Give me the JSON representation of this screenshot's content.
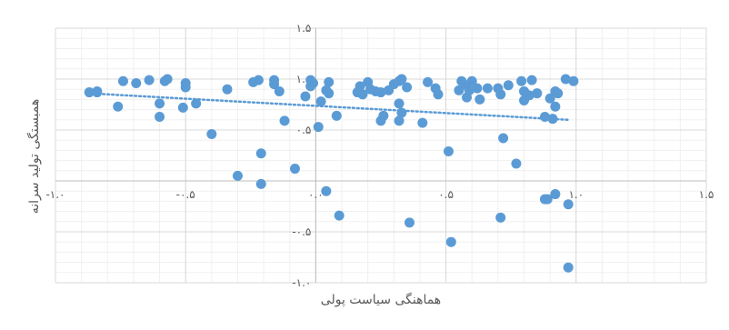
{
  "chart_data": {
    "type": "scatter",
    "xlabel": "هماهنگی سیاست پولی",
    "ylabel": "همبستگی تولید سرانه",
    "xlim": [
      -1.0,
      1.5
    ],
    "ylim": [
      -1.0,
      1.5
    ],
    "x_tick_labels": [
      "-۱.۰",
      "-۰.۵",
      "۰.۰",
      "۰.۵",
      "۱.۰",
      "۱.۵"
    ],
    "y_tick_labels": [
      "-۱.۰",
      "-۰.۵",
      "۰.۰",
      "۰.۵",
      "۱.۰",
      "۱.۵"
    ],
    "x_ticks": [
      -1.0,
      -0.5,
      0.0,
      0.5,
      1.0,
      1.5
    ],
    "y_ticks": [
      -1.0,
      -0.5,
      0.0,
      0.5,
      1.0,
      1.5
    ],
    "grid": true,
    "minor_grid": true,
    "trendline": {
      "type": "linear",
      "x": [
        -0.87,
        0.97
      ],
      "y": [
        0.86,
        0.6
      ]
    },
    "colors": {
      "marker": "#5b9bd5",
      "trend": "#5b9bd5",
      "major_grid": "#d9d9d9",
      "minor_grid": "#f0f0f0",
      "axis": "#bfbfbf"
    },
    "series": [
      {
        "points": [
          [
            -0.87,
            0.87
          ],
          [
            -0.84,
            0.87
          ],
          [
            -0.84,
            0.88
          ],
          [
            -0.76,
            0.73
          ],
          [
            -0.74,
            0.98
          ],
          [
            -0.69,
            0.96
          ],
          [
            -0.64,
            0.99
          ],
          [
            -0.6,
            0.76
          ],
          [
            -0.6,
            0.63
          ],
          [
            -0.58,
            0.98
          ],
          [
            -0.57,
            1.0
          ],
          [
            -0.51,
            0.72
          ],
          [
            -0.5,
            0.96
          ],
          [
            -0.5,
            0.92
          ],
          [
            -0.46,
            0.76
          ],
          [
            -0.4,
            0.46
          ],
          [
            -0.34,
            0.9
          ],
          [
            -0.3,
            0.05
          ],
          [
            -0.24,
            0.97
          ],
          [
            -0.22,
            0.99
          ],
          [
            -0.21,
            0.27
          ],
          [
            -0.21,
            -0.03
          ],
          [
            -0.16,
            0.99
          ],
          [
            -0.16,
            0.95
          ],
          [
            -0.14,
            0.88
          ],
          [
            -0.12,
            0.59
          ],
          [
            -0.08,
            0.12
          ],
          [
            -0.04,
            0.83
          ],
          [
            -0.02,
            0.99
          ],
          [
            -0.02,
            0.93
          ],
          [
            -0.01,
            0.96
          ],
          [
            0.01,
            0.53
          ],
          [
            0.02,
            0.78
          ],
          [
            0.04,
            0.89
          ],
          [
            0.05,
            0.97
          ],
          [
            0.05,
            0.86
          ],
          [
            0.04,
            -0.1
          ],
          [
            0.08,
            0.64
          ],
          [
            0.09,
            -0.34
          ],
          [
            0.16,
            0.87
          ],
          [
            0.17,
            0.93
          ],
          [
            0.18,
            0.85
          ],
          [
            0.2,
            0.97
          ],
          [
            0.21,
            0.9
          ],
          [
            0.23,
            0.88
          ],
          [
            0.25,
            0.59
          ],
          [
            0.25,
            0.87
          ],
          [
            0.26,
            0.64
          ],
          [
            0.28,
            0.89
          ],
          [
            0.3,
            0.95
          ],
          [
            0.32,
            0.98
          ],
          [
            0.33,
            1.0
          ],
          [
            0.32,
            0.76
          ],
          [
            0.33,
            0.67
          ],
          [
            0.32,
            0.59
          ],
          [
            0.35,
            0.92
          ],
          [
            0.36,
            -0.41
          ],
          [
            0.41,
            0.57
          ],
          [
            0.43,
            0.97
          ],
          [
            0.46,
            0.91
          ],
          [
            0.47,
            0.85
          ],
          [
            0.51,
            0.29
          ],
          [
            0.52,
            -0.6
          ],
          [
            0.55,
            0.89
          ],
          [
            0.56,
            0.98
          ],
          [
            0.58,
            0.94
          ],
          [
            0.59,
            0.89
          ],
          [
            0.6,
            0.98
          ],
          [
            0.58,
            0.82
          ],
          [
            0.62,
            0.91
          ],
          [
            0.63,
            0.8
          ],
          [
            0.66,
            0.91
          ],
          [
            0.7,
            0.91
          ],
          [
            0.71,
            0.85
          ],
          [
            0.72,
            0.42
          ],
          [
            0.71,
            -0.36
          ],
          [
            0.74,
            0.94
          ],
          [
            0.77,
            0.17
          ],
          [
            0.79,
            0.98
          ],
          [
            0.8,
            0.88
          ],
          [
            0.8,
            0.79
          ],
          [
            0.82,
            0.84
          ],
          [
            0.83,
            0.99
          ],
          [
            0.85,
            0.86
          ],
          [
            0.88,
            0.63
          ],
          [
            0.88,
            -0.18
          ],
          [
            0.89,
            -0.18
          ],
          [
            0.9,
            0.81
          ],
          [
            0.91,
            0.61
          ],
          [
            0.92,
            0.88
          ],
          [
            0.92,
            0.73
          ],
          [
            0.92,
            -0.13
          ],
          [
            0.93,
            0.86
          ],
          [
            0.96,
            1.0
          ],
          [
            0.97,
            -0.23
          ],
          [
            0.97,
            -0.85
          ],
          [
            0.99,
            0.98
          ]
        ]
      }
    ]
  }
}
